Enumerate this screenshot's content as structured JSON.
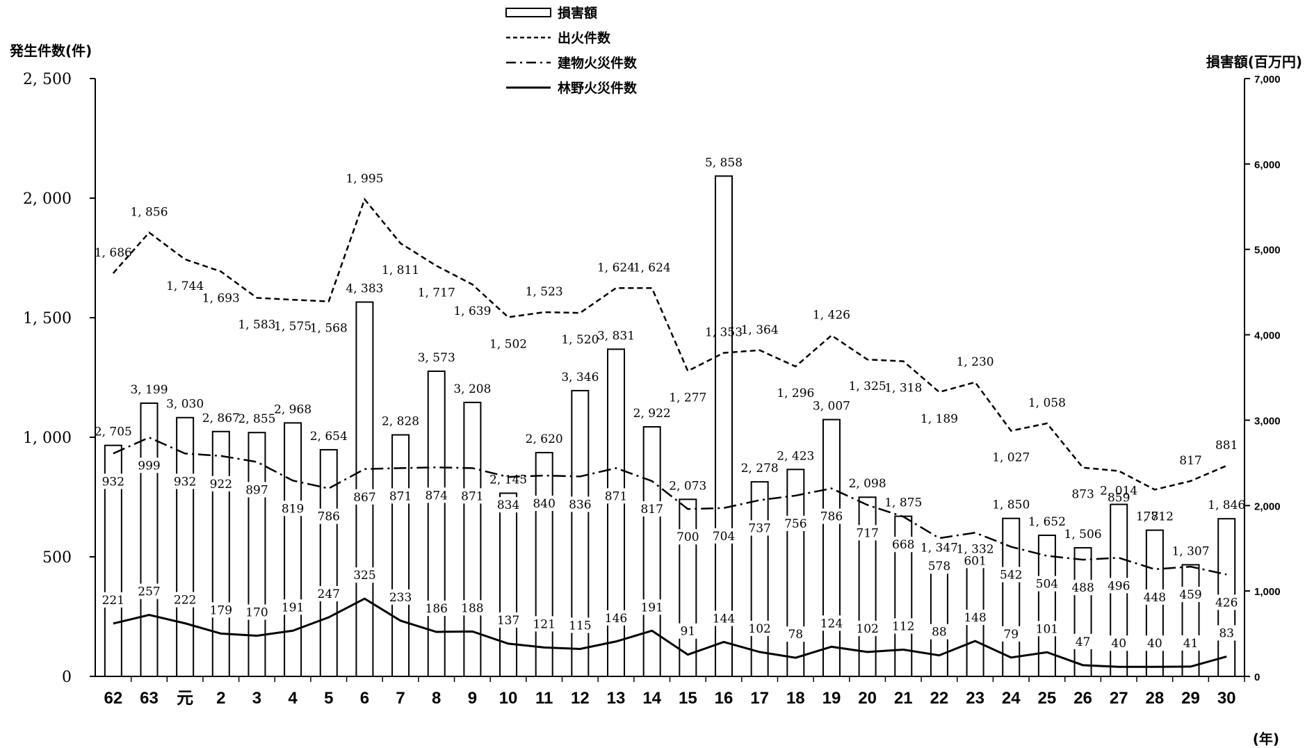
{
  "chart_data": {
    "type": "bar+line",
    "y_left_label": "発生件数(件)",
    "y_right_label": "損害額(百万円)",
    "x_unit_label": "(年)",
    "y_left_range": [
      0,
      2500
    ],
    "y_right_range": [
      0,
      7000
    ],
    "y_left_ticks": [
      "0",
      "500",
      "1, 000",
      "1, 500",
      "2, 000",
      "2, 500"
    ],
    "y_right_ticks": [
      "0",
      "1,000",
      "2,000",
      "3,000",
      "4,000",
      "5,000",
      "6,000",
      "7,000"
    ],
    "categories": [
      "62",
      "63",
      "元",
      "2",
      "3",
      "4",
      "5",
      "6",
      "7",
      "8",
      "9",
      "10",
      "11",
      "12",
      "13",
      "14",
      "15",
      "16",
      "17",
      "18",
      "19",
      "20",
      "21",
      "22",
      "23",
      "24",
      "25",
      "26",
      "27",
      "28",
      "29",
      "30"
    ],
    "legend": [
      "損害額",
      "出火件数",
      "建物火災件数",
      "林野火災件数"
    ],
    "series": [
      {
        "name": "損害額",
        "axis": "right",
        "style": "bar",
        "values": [
          2705,
          3199,
          3030,
          2867,
          2855,
          2968,
          2654,
          4383,
          2828,
          3573,
          3208,
          2145,
          2620,
          3346,
          3831,
          2922,
          2073,
          5858,
          2278,
          2423,
          3007,
          2098,
          1875,
          1347,
          1332,
          1850,
          1652,
          1506,
          2014,
          1712,
          1307,
          1846
        ],
        "labels": [
          "2, 705",
          "3, 199",
          "3, 030",
          "2, 867",
          "2, 855",
          "2, 968",
          "2, 654",
          "4, 383",
          "2, 828",
          "3, 573",
          "3, 208",
          "2, 145",
          "2, 620",
          "3, 346",
          "3, 831",
          "2, 922",
          "2, 073",
          "5, 858",
          "2, 278",
          "2, 423",
          "3, 007",
          "2, 098",
          "1, 875",
          "1, 347",
          "1, 332",
          "1, 850",
          "1, 652",
          "1, 506",
          "2, 014",
          "1, 712",
          "1, 307",
          "1, 846"
        ]
      },
      {
        "name": "出火件数",
        "axis": "left",
        "style": "dashed",
        "values": [
          1686,
          1856,
          1744,
          1693,
          1583,
          1575,
          1568,
          1995,
          1811,
          1717,
          1639,
          1502,
          1523,
          1520,
          1624,
          1624,
          1277,
          1353,
          1364,
          1296,
          1426,
          1325,
          1318,
          1189,
          1230,
          1027,
          1058,
          873,
          859,
          781,
          817,
          881
        ],
        "labels": [
          "1, 686",
          "1, 856",
          "1, 744",
          "1, 693",
          "1, 583",
          "1, 575",
          "1, 568",
          "1, 995",
          "1, 811",
          "1, 717",
          "1, 639",
          "1, 502",
          "1, 523",
          "1, 520",
          "1, 624",
          "1, 624",
          "1, 277",
          "1, 353",
          "1, 364",
          "1, 296",
          "1, 426",
          "1, 325",
          "1, 318",
          "1, 189",
          "1, 230",
          "1, 027",
          "1, 058",
          "873",
          "859",
          "781",
          "817",
          "881"
        ]
      },
      {
        "name": "建物火災件数",
        "axis": "left",
        "style": "dashdot",
        "values": [
          932,
          999,
          932,
          922,
          897,
          819,
          786,
          867,
          871,
          874,
          871,
          834,
          840,
          836,
          871,
          817,
          700,
          704,
          737,
          756,
          786,
          717,
          668,
          578,
          601,
          542,
          504,
          488,
          496,
          448,
          459,
          426
        ],
        "labels": [
          "932",
          "999",
          "932",
          "922",
          "897",
          "819",
          "786",
          "867",
          "871",
          "874",
          "871",
          "834",
          "840",
          "836",
          "871",
          "817",
          "700",
          "704",
          "737",
          "756",
          "786",
          "717",
          "668",
          "578",
          "601",
          "542",
          "504",
          "488",
          "496",
          "448",
          "459",
          "426"
        ]
      },
      {
        "name": "林野火災件数",
        "axis": "left",
        "style": "solid",
        "values": [
          221,
          257,
          222,
          179,
          170,
          191,
          247,
          325,
          233,
          186,
          188,
          137,
          121,
          115,
          146,
          191,
          91,
          144,
          102,
          78,
          124,
          102,
          112,
          88,
          148,
          79,
          101,
          47,
          40,
          40,
          41,
          83
        ],
        "labels": [
          "221",
          "257",
          "222",
          "179",
          "170",
          "191",
          "247",
          "325",
          "233",
          "186",
          "188",
          "137",
          "121",
          "115",
          "146",
          "191",
          "91",
          "144",
          "102",
          "78",
          "124",
          "102",
          "112",
          "88",
          "148",
          "79",
          "101",
          "47",
          "40",
          "40",
          "41",
          "83"
        ]
      }
    ]
  }
}
